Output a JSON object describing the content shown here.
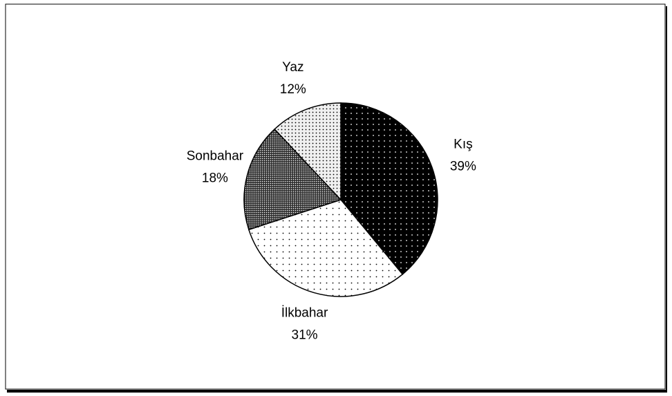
{
  "chart_data": {
    "type": "pie",
    "categories": [
      "Kış",
      "İlkbahar",
      "Sonbahar",
      "Yaz"
    ],
    "values": [
      39,
      31,
      18,
      12
    ],
    "value_labels": [
      "39%",
      "31%",
      "18%",
      "12%"
    ],
    "colors": [
      "#000000",
      "#ffffff",
      "#303030",
      "#f0f0f0"
    ]
  }
}
